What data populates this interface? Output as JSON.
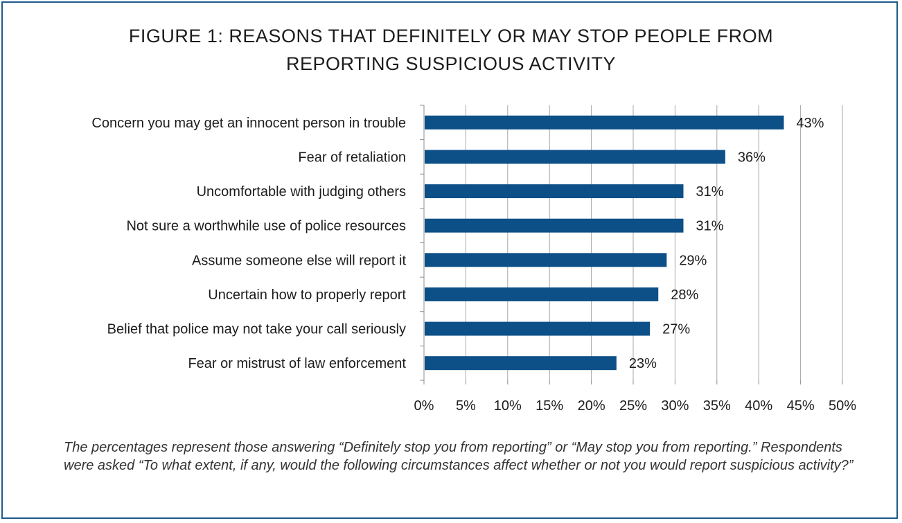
{
  "figure": {
    "title_line1": "FIGURE 1: REASONS THAT DEFINITELY OR MAY STOP PEOPLE FROM",
    "title_line2": "REPORTING SUSPICIOUS ACTIVITY",
    "note": "The percentages represent those answering “Definitely stop you from reporting” or “May stop you from reporting.”  Respondents were asked “To what extent, if any, would the following circumstances affect whether or not you would report suspicious activity?”"
  },
  "colors": {
    "bar": "#0d4f87",
    "border": "#1d5a8c",
    "grid": "#a6a6a6",
    "text": "#1c1c1c"
  },
  "chart_data": {
    "type": "bar",
    "orientation": "horizontal",
    "categories": [
      "Concern you may get an innocent person in trouble",
      "Fear of retaliation",
      "Uncomfortable with judging others",
      "Not sure a worthwhile use of police resources",
      "Assume someone else will report it",
      "Uncertain how to properly report",
      "Belief that police may not take your call seriously",
      "Fear or mistrust of law enforcement"
    ],
    "values": [
      43,
      36,
      31,
      31,
      29,
      28,
      27,
      23
    ],
    "data_labels": [
      "43%",
      "36%",
      "31%",
      "31%",
      "29%",
      "28%",
      "27%",
      "23%"
    ],
    "xlim": [
      0,
      50
    ],
    "x_ticks": [
      "0%",
      "5%",
      "10%",
      "15%",
      "20%",
      "25%",
      "30%",
      "35%",
      "40%",
      "45%",
      "50%"
    ],
    "grid": true,
    "legend": "none"
  }
}
